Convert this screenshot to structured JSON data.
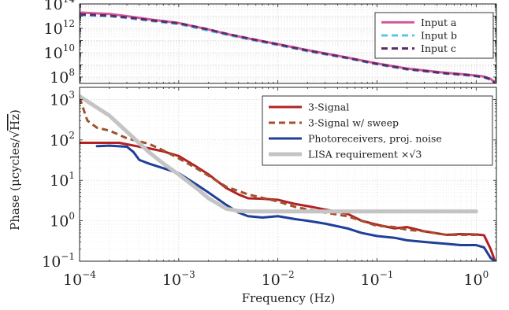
{
  "chart_data": [
    {
      "type": "line",
      "panel": "top",
      "xlabel": "",
      "ylabel": "",
      "xscale": "log",
      "yscale": "log",
      "xlim": [
        0.0001,
        1.6
      ],
      "ylim": [
        30000000.0,
        100000000000000.0
      ],
      "yticks": [
        {
          "value": 100000000.0,
          "base": "10",
          "exp": "8"
        },
        {
          "value": 10000000000.0,
          "base": "10",
          "exp": "10"
        },
        {
          "value": 1000000000000.0,
          "base": "10",
          "exp": "12"
        },
        {
          "value": 100000000000000.0,
          "base": "10",
          "exp": "14"
        }
      ],
      "grid": true,
      "legend_position": "top-right",
      "series": [
        {
          "name": "Input a",
          "color": "#d4589c",
          "style": "solid",
          "width": 3,
          "x": [
            0.0001,
            0.0002,
            0.0003,
            0.0005,
            0.001,
            0.002,
            0.003,
            0.005,
            0.01,
            0.02,
            0.05,
            0.1,
            0.2,
            0.5,
            0.8,
            1.0,
            1.2,
            1.4,
            1.55
          ],
          "y": [
            20000000000000.0,
            15000000000000.0,
            10000000000000.0,
            5500000000000.0,
            2700000000000.0,
            800000000000.0,
            350000000000.0,
            150000000000.0,
            50000000000.0,
            16000000000.0,
            4000000000.0,
            1300000000.0,
            500000000.0,
            220000000.0,
            160000000.0,
            130000000.0,
            110000000.0,
            70000000.0,
            35000000.0
          ]
        },
        {
          "name": "Input b",
          "color": "#5cc8e0",
          "style": "dashed",
          "width": 3,
          "x": [
            0.0001,
            0.0002,
            0.0003,
            0.0005,
            0.001,
            0.002,
            0.003,
            0.005,
            0.01,
            0.02,
            0.05,
            0.1,
            0.2,
            0.5,
            0.8,
            1.0,
            1.2,
            1.4,
            1.55
          ],
          "y": [
            12000000000000.0,
            9500000000000.0,
            7000000000000.0,
            4200000000000.0,
            2200000000000.0,
            650000000000.0,
            300000000000.0,
            130000000000.0,
            42000000000.0,
            13000000000.0,
            3500000000.0,
            1100000000.0,
            420000000.0,
            190000000.0,
            140000000.0,
            115000000.0,
            95000000.0,
            60000000.0,
            32000000.0
          ]
        },
        {
          "name": "Input c",
          "color": "#5c2b68",
          "style": "dashed",
          "width": 3,
          "x": [
            0.0001,
            0.0002,
            0.0003,
            0.0005,
            0.001,
            0.002,
            0.003,
            0.005,
            0.01,
            0.02,
            0.05,
            0.1,
            0.2,
            0.5,
            0.8,
            1.0,
            1.2,
            1.4,
            1.55
          ],
          "y": [
            14000000000000.0,
            11000000000000.0,
            8000000000000.0,
            4800000000000.0,
            2600000000000.0,
            800000000000.0,
            360000000000.0,
            150000000000.0,
            48000000000.0,
            15000000000.0,
            3800000000.0,
            1200000000.0,
            460000000.0,
            200000000.0,
            150000000.0,
            120000000.0,
            100000000.0,
            65000000.0,
            34000000.0
          ]
        }
      ]
    },
    {
      "type": "line",
      "panel": "bottom",
      "xlabel": "Frequency (Hz)",
      "ylabel_prefix": "Phase (μcycles/",
      "ylabel_root": "Hz",
      "ylabel_suffix": ")",
      "xscale": "log",
      "yscale": "log",
      "xlim": [
        0.0001,
        1.6
      ],
      "ylim": [
        0.1,
        2000
      ],
      "xticks": [
        {
          "value": 0.0001,
          "base": "10",
          "exp": "−4"
        },
        {
          "value": 0.001,
          "base": "10",
          "exp": "−3"
        },
        {
          "value": 0.01,
          "base": "10",
          "exp": "−2"
        },
        {
          "value": 0.1,
          "base": "10",
          "exp": "−1"
        },
        {
          "value": 1,
          "base": "10",
          "exp": "0"
        }
      ],
      "yticks": [
        {
          "value": 0.1,
          "label": "10",
          "exp": "−1"
        },
        {
          "value": 1,
          "label": "10",
          "exp": "0"
        },
        {
          "value": 10,
          "label": "10",
          "exp": "1"
        },
        {
          "value": 100,
          "label": "10",
          "exp": "2"
        },
        {
          "value": 1000,
          "label": "10",
          "exp": "3"
        }
      ],
      "grid": true,
      "legend_position": "top-right",
      "series": [
        {
          "name": "3-Signal",
          "color": "#b22222",
          "style": "solid",
          "width": 3,
          "x": [
            0.0001,
            0.00015,
            0.0002,
            0.00025,
            0.0003,
            0.0004,
            0.0005,
            0.0007,
            0.001,
            0.0015,
            0.002,
            0.003,
            0.004,
            0.005,
            0.007,
            0.01,
            0.015,
            0.02,
            0.03,
            0.05,
            0.07,
            0.1,
            0.15,
            0.2,
            0.3,
            0.5,
            0.7,
            1.0,
            1.2,
            1.4,
            1.55
          ],
          "y": [
            85,
            85,
            85,
            85,
            78,
            68,
            62,
            52,
            40,
            22,
            14,
            6.5,
            4.5,
            3.6,
            3.5,
            3.3,
            2.6,
            2.3,
            1.9,
            1.5,
            1.0,
            0.8,
            0.65,
            0.7,
            0.55,
            0.45,
            0.47,
            0.46,
            0.44,
            0.2,
            0.1
          ]
        },
        {
          "name": "3-Signal w/ sweep",
          "color": "#a0522d",
          "style": "dashed",
          "width": 3,
          "x": [
            0.0001,
            0.00012,
            0.00015,
            0.0002,
            0.0003,
            0.0005,
            0.0007,
            0.001,
            0.0015,
            0.002,
            0.003,
            0.005,
            0.007,
            0.01,
            0.015,
            0.02,
            0.03,
            0.05,
            0.07,
            0.1,
            0.15,
            0.2,
            0.3,
            0.5,
            0.7,
            1.0
          ],
          "y": [
            1100,
            300,
            200,
            170,
            110,
            80,
            55,
            35,
            20,
            13,
            7,
            4.5,
            3.7,
            3.0,
            2.2,
            1.9,
            1.6,
            1.3,
            1.0,
            0.75,
            0.7,
            0.6,
            0.55,
            0.45,
            0.45,
            0.45
          ]
        },
        {
          "name": "Photoreceivers, proj. noise",
          "color": "#1f3f99",
          "style": "solid",
          "width": 3,
          "x": [
            0.00015,
            0.0002,
            0.0003,
            0.00035,
            0.0004,
            0.0005,
            0.0007,
            0.001,
            0.0015,
            0.002,
            0.003,
            0.004,
            0.005,
            0.007,
            0.01,
            0.015,
            0.02,
            0.03,
            0.05,
            0.07,
            0.1,
            0.15,
            0.2,
            0.3,
            0.5,
            0.7,
            1.0,
            1.2,
            1.4,
            1.55
          ],
          "y": [
            70,
            72,
            68,
            50,
            32,
            26,
            20,
            15,
            8,
            5,
            2.5,
            1.6,
            1.3,
            1.2,
            1.3,
            1.1,
            1.0,
            0.85,
            0.65,
            0.5,
            0.42,
            0.38,
            0.33,
            0.3,
            0.27,
            0.25,
            0.25,
            0.22,
            0.12,
            0.1
          ]
        },
        {
          "name": "LISA requirement ×√3",
          "color": "#c4c4c4",
          "style": "solid",
          "width": 5,
          "x": [
            0.0001,
            0.0002,
            0.0003,
            0.0005,
            0.0007,
            0.001,
            0.0015,
            0.002,
            0.003,
            0.004,
            0.005,
            0.007,
            0.01,
            0.02,
            0.05,
            0.1,
            0.2,
            0.5,
            1.0
          ],
          "y": [
            1200,
            400,
            160,
            50,
            26,
            14,
            6.5,
            3.6,
            2.0,
            1.75,
            1.7,
            1.7,
            1.7,
            1.7,
            1.7,
            1.7,
            1.7,
            1.7,
            1.7
          ]
        }
      ]
    }
  ]
}
